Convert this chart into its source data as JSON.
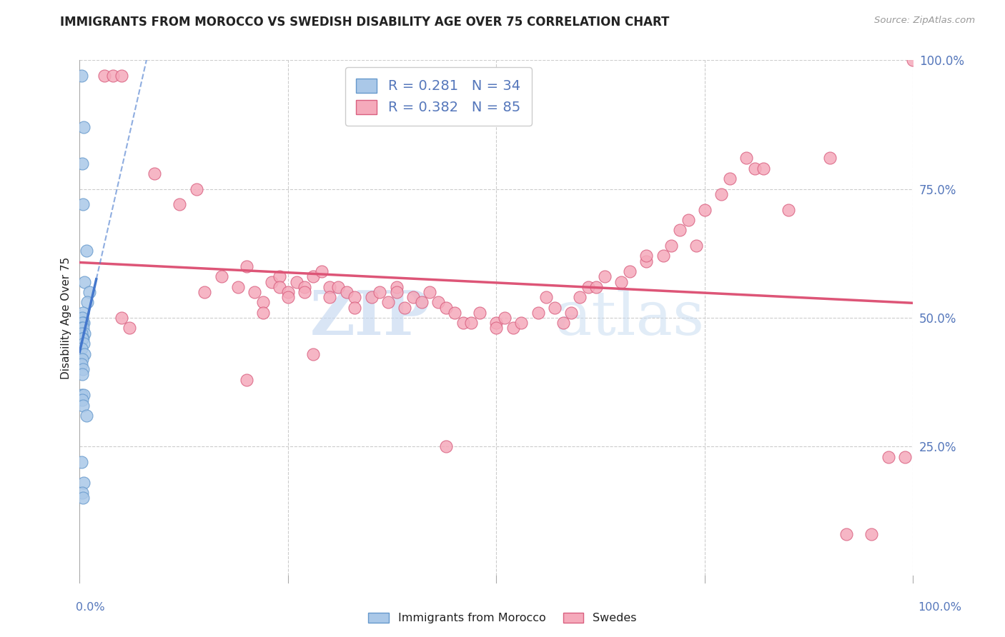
{
  "title": "IMMIGRANTS FROM MOROCCO VS SWEDISH DISABILITY AGE OVER 75 CORRELATION CHART",
  "source": "Source: ZipAtlas.com",
  "ylabel": "Disability Age Over 75",
  "legend1_label": "Immigrants from Morocco",
  "legend2_label": "Swedes",
  "r1": "0.281",
  "n1": "34",
  "r2": "0.382",
  "n2": "85",
  "morocco_color": "#aac8e8",
  "morocco_edge": "#6699cc",
  "sweden_color": "#f5aabb",
  "sweden_edge": "#d96080",
  "trend1_color": "#4477cc",
  "trend2_color": "#dd5577",
  "background": "#ffffff",
  "grid_color": "#cccccc",
  "title_color": "#222222",
  "axis_label_color": "#5577bb",
  "yticklabels": [
    "25.0%",
    "50.0%",
    "75.0%",
    "100.0%"
  ],
  "yticks_pct": [
    25,
    50,
    75,
    100
  ],
  "morocco_x": [
    0.2,
    0.5,
    0.3,
    0.4,
    0.8,
    0.6,
    1.2,
    0.9,
    0.4,
    0.3,
    0.5,
    0.3,
    0.2,
    0.4,
    0.6,
    0.2,
    0.4,
    0.3,
    0.5,
    0.2,
    0.6,
    0.3,
    0.2,
    0.4,
    0.3,
    0.2,
    0.5,
    0.3,
    0.4,
    0.8,
    0.2,
    0.5,
    0.3,
    0.4
  ],
  "morocco_y": [
    97,
    87,
    80,
    72,
    63,
    57,
    55,
    53,
    51,
    50,
    49,
    49,
    48,
    48,
    47,
    47,
    46,
    46,
    45,
    44,
    43,
    42,
    41,
    40,
    39,
    35,
    35,
    34,
    33,
    31,
    22,
    18,
    16,
    15
  ],
  "sweden_x": [
    3,
    4,
    5,
    5,
    6,
    9,
    12,
    14,
    15,
    17,
    19,
    20,
    21,
    22,
    22,
    23,
    24,
    24,
    25,
    25,
    26,
    27,
    27,
    28,
    29,
    30,
    30,
    31,
    32,
    33,
    33,
    35,
    36,
    37,
    38,
    38,
    39,
    40,
    41,
    42,
    43,
    44,
    45,
    46,
    47,
    48,
    50,
    51,
    52,
    53,
    55,
    56,
    57,
    58,
    59,
    60,
    61,
    62,
    63,
    65,
    66,
    68,
    70,
    71,
    72,
    73,
    74,
    75,
    77,
    78,
    80,
    81,
    82,
    85,
    90,
    92,
    95,
    97,
    99,
    100,
    50,
    28,
    20,
    68,
    44
  ],
  "sweden_y": [
    97,
    97,
    97,
    50,
    48,
    78,
    72,
    75,
    55,
    58,
    56,
    60,
    55,
    53,
    51,
    57,
    58,
    56,
    55,
    54,
    57,
    56,
    55,
    58,
    59,
    56,
    54,
    56,
    55,
    54,
    52,
    54,
    55,
    53,
    56,
    55,
    52,
    54,
    53,
    55,
    53,
    52,
    51,
    49,
    49,
    51,
    49,
    50,
    48,
    49,
    51,
    54,
    52,
    49,
    51,
    54,
    56,
    56,
    58,
    57,
    59,
    61,
    62,
    64,
    67,
    69,
    64,
    71,
    74,
    77,
    81,
    79,
    79,
    71,
    81,
    8,
    8,
    23,
    23,
    100,
    48,
    43,
    38,
    62,
    25
  ]
}
